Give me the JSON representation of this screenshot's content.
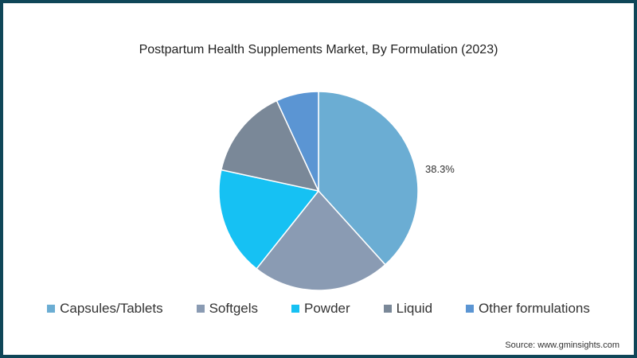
{
  "chart_data": {
    "type": "pie",
    "title": "Postpartum Health Supplements Market, By Formulation (2023)",
    "categories": [
      "Capsules/Tablets",
      "Softgels",
      "Powder",
      "Liquid",
      "Other formulations"
    ],
    "values": [
      38.3,
      22.4,
      17.7,
      14.7,
      6.9
    ],
    "colors": [
      "#6badd3",
      "#8a9bb3",
      "#16c1f3",
      "#7a8898",
      "#5b95d3"
    ],
    "data_labels": [
      "38.3%"
    ],
    "legend_position": "bottom"
  },
  "source": "Source: www.gminsights.com"
}
